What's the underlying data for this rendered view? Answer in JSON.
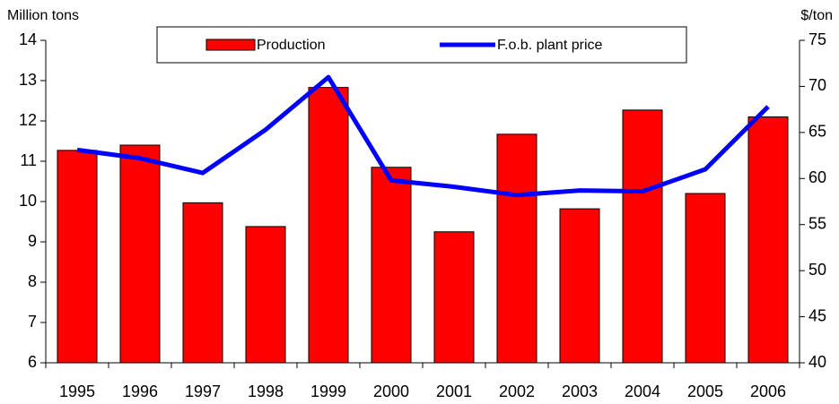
{
  "chart_data": {
    "type": "bar-line",
    "y_label": "Million tons",
    "y2_label": "$/ton",
    "categories": [
      "1995",
      "1996",
      "1997",
      "1998",
      "1999",
      "2000",
      "2001",
      "2002",
      "2003",
      "2004",
      "2005",
      "2006"
    ],
    "series": [
      {
        "name": "Production",
        "type": "bar",
        "color": "#ff0000",
        "values": [
          11.27,
          11.4,
          9.97,
          9.38,
          12.83,
          10.85,
          9.25,
          11.67,
          9.82,
          12.27,
          10.2,
          12.1
        ]
      },
      {
        "name": "F.o.b. plant price",
        "type": "line",
        "color": "#0000ff",
        "axis": "y2",
        "values": [
          63.1,
          62.2,
          60.6,
          65.3,
          71.0,
          59.8,
          59.1,
          58.2,
          58.7,
          58.6,
          61.0,
          67.8
        ]
      }
    ],
    "ylim": [
      6,
      14
    ],
    "yticks": [
      6,
      7,
      8,
      9,
      10,
      11,
      12,
      13,
      14
    ],
    "y2lim": [
      40,
      75
    ],
    "y2ticks": [
      40,
      45,
      50,
      55,
      60,
      65,
      70,
      75
    ],
    "grid": false
  }
}
